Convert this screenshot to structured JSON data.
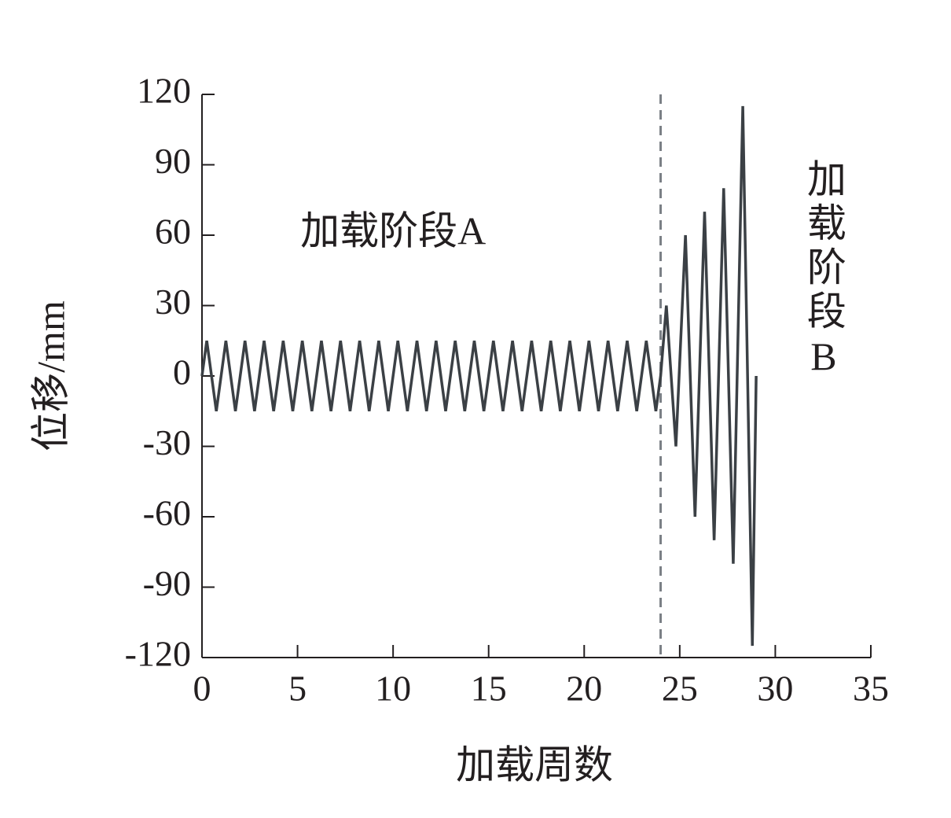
{
  "chart_data": {
    "type": "line",
    "x_label": "加载周数",
    "y_label": "位移/mm",
    "annotations": [
      {
        "text": "加载阶段A",
        "x": 10,
        "y": 60
      },
      {
        "text": "加载阶段B",
        "x": 32.3,
        "y": 45
      }
    ],
    "vline": 24,
    "xlim": [
      0,
      35
    ],
    "xticks": [
      0,
      5,
      10,
      15,
      20,
      25,
      30,
      35
    ],
    "ylim": [
      -120,
      120
    ],
    "yticks": [
      -120,
      -90,
      -60,
      -30,
      0,
      30,
      60,
      90,
      120
    ],
    "grid": false,
    "series": [
      {
        "color": "#3b4045",
        "x": [
          0,
          0.25,
          0.75,
          1,
          1.25,
          1.75,
          2,
          2.25,
          2.75,
          3,
          3.25,
          3.75,
          4,
          4.25,
          4.75,
          5,
          5.25,
          5.75,
          6,
          6.25,
          6.75,
          7,
          7.25,
          7.75,
          8,
          8.25,
          8.75,
          9,
          9.25,
          9.75,
          10,
          10.25,
          10.75,
          11,
          11.25,
          11.75,
          12,
          12.25,
          12.75,
          13,
          13.25,
          13.75,
          14,
          14.25,
          14.75,
          15,
          15.25,
          15.75,
          16,
          16.25,
          16.75,
          17,
          17.25,
          17.75,
          18,
          18.25,
          18.75,
          19,
          19.25,
          19.75,
          20,
          20.25,
          20.75,
          21,
          21.25,
          21.75,
          22,
          22.25,
          22.75,
          23,
          23.25,
          23.75,
          24,
          24.3,
          24.8,
          25.3,
          25.8,
          26.3,
          26.8,
          27.3,
          27.8,
          28.3,
          28.8,
          29
        ],
        "values": [
          0,
          15,
          -15,
          0,
          15,
          -15,
          0,
          15,
          -15,
          0,
          15,
          -15,
          0,
          15,
          -15,
          0,
          15,
          -15,
          0,
          15,
          -15,
          0,
          15,
          -15,
          0,
          15,
          -15,
          0,
          15,
          -15,
          0,
          15,
          -15,
          0,
          15,
          -15,
          0,
          15,
          -15,
          0,
          15,
          -15,
          0,
          15,
          -15,
          0,
          15,
          -15,
          0,
          15,
          -15,
          0,
          15,
          -15,
          0,
          15,
          -15,
          0,
          15,
          -15,
          0,
          15,
          -15,
          0,
          15,
          -15,
          0,
          15,
          -15,
          0,
          15,
          -15,
          0,
          30,
          -30,
          60,
          -60,
          70,
          -70,
          80,
          -80,
          115,
          -115,
          0
        ]
      }
    ]
  }
}
